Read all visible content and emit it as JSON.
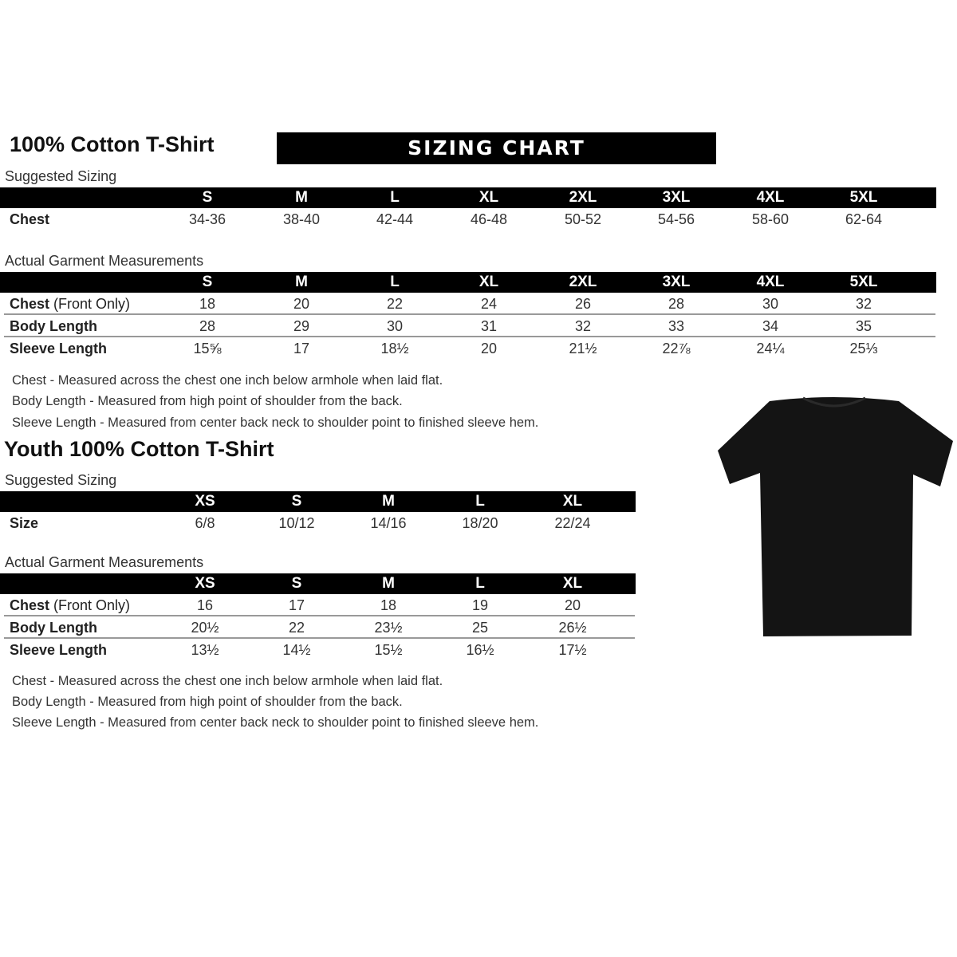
{
  "adult": {
    "title": "100% Cotton T-Shirt",
    "banner": "SIZING CHART",
    "suggested": {
      "label": "Suggested Sizing",
      "sizes": [
        "S",
        "M",
        "L",
        "XL",
        "2XL",
        "3XL",
        "4XL",
        "5XL"
      ],
      "rows": [
        {
          "label": "Chest",
          "label_extra": "",
          "values": [
            "34-36",
            "38-40",
            "42-44",
            "46-48",
            "50-52",
            "54-56",
            "58-60",
            "62-64"
          ]
        }
      ]
    },
    "actual": {
      "label": "Actual Garment Measurements",
      "sizes": [
        "S",
        "M",
        "L",
        "XL",
        "2XL",
        "3XL",
        "4XL",
        "5XL"
      ],
      "rows": [
        {
          "label": "Chest",
          "label_extra": " (Front Only)",
          "values": [
            "18",
            "20",
            "22",
            "24",
            "26",
            "28",
            "30",
            "32"
          ]
        },
        {
          "label": "Body Length",
          "label_extra": "",
          "values": [
            "28",
            "29",
            "30",
            "31",
            "32",
            "33",
            "34",
            "35"
          ]
        },
        {
          "label": "Sleeve Length",
          "label_extra": "",
          "values": [
            "15⅝",
            "17",
            "18½",
            "20",
            "21½",
            "22⅞",
            "24¼",
            "25⅓"
          ]
        }
      ]
    },
    "notes": [
      "Chest - Measured across the chest one inch below armhole when laid flat.",
      "Body Length - Measured from high point of shoulder from the back.",
      "Sleeve Length - Measured from center back neck to shoulder point to finished sleeve hem."
    ]
  },
  "youth": {
    "title": "Youth 100% Cotton T-Shirt",
    "suggested": {
      "label": "Suggested Sizing",
      "sizes": [
        "XS",
        "S",
        "M",
        "L",
        "XL"
      ],
      "rows": [
        {
          "label": "Size",
          "label_extra": "",
          "values": [
            "6/8",
            "10/12",
            "14/16",
            "18/20",
            "22/24"
          ]
        }
      ]
    },
    "actual": {
      "label": "Actual Garment Measurements",
      "sizes": [
        "XS",
        "S",
        "M",
        "L",
        "XL"
      ],
      "rows": [
        {
          "label": "Chest",
          "label_extra": " (Front Only)",
          "values": [
            "16",
            "17",
            "18",
            "19",
            "20"
          ]
        },
        {
          "label": "Body Length",
          "label_extra": "",
          "values": [
            "20½",
            "22",
            "23½",
            "25",
            "26½"
          ]
        },
        {
          "label": "Sleeve Length",
          "label_extra": "",
          "values": [
            "13½",
            "14½",
            "15½",
            "16½",
            "17½"
          ]
        }
      ]
    },
    "notes": [
      "Chest - Measured across the chest one inch below armhole when laid flat.",
      "Body Length - Measured from high point of shoulder from the back.",
      "Sleeve Length - Measured from center back neck to shoulder point to finished sleeve hem."
    ]
  },
  "image": {
    "icon": "black-tshirt-icon",
    "color": "#141414"
  }
}
